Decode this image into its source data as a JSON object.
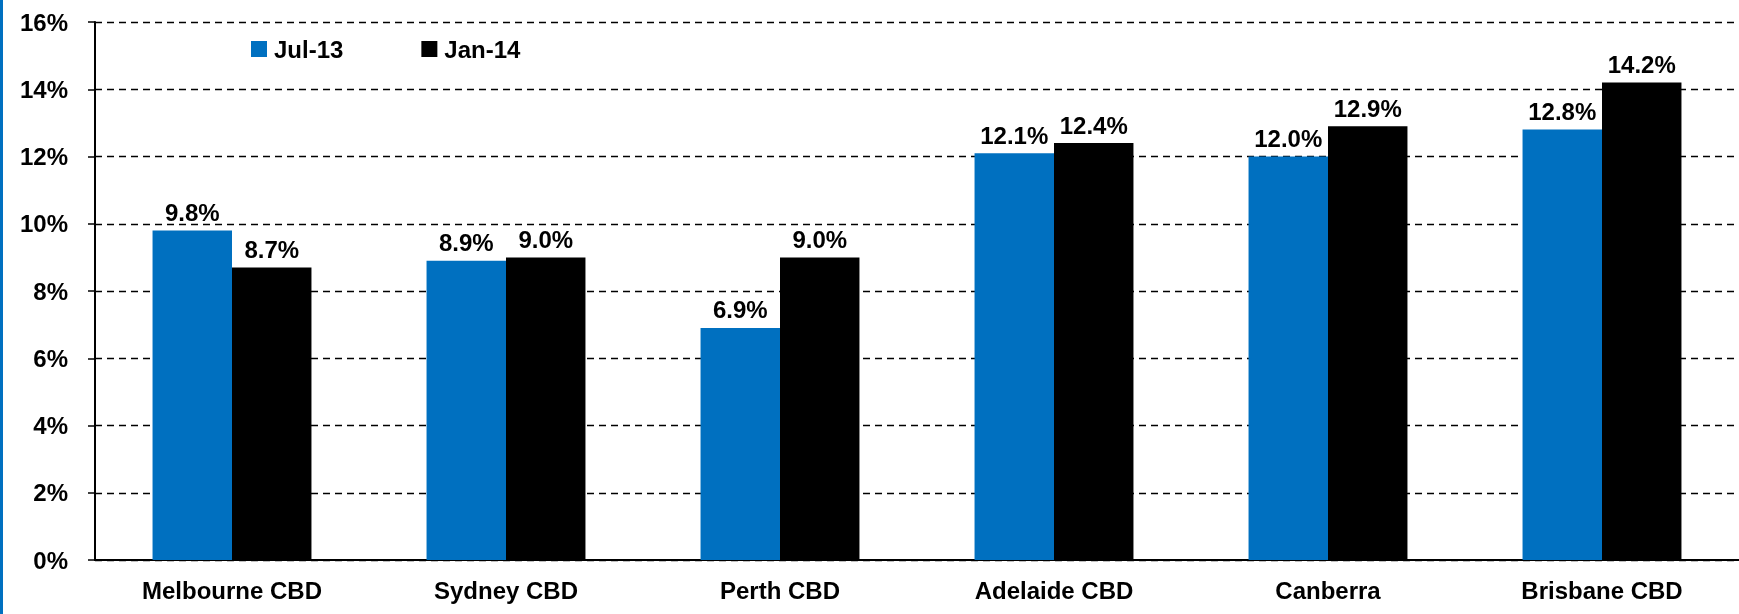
{
  "chart_data": {
    "type": "bar",
    "categories": [
      "Melbourne CBD",
      "Sydney CBD",
      "Perth CBD",
      "Adelaide CBD",
      "Canberra",
      "Brisbane CBD"
    ],
    "series": [
      {
        "name": "Jul-13",
        "color": "#0070c0",
        "values": [
          9.8,
          8.9,
          6.9,
          12.1,
          12.0,
          12.8
        ],
        "value_labels": [
          "9.8%",
          "8.9%",
          "6.9%",
          "12.1%",
          "12.0%",
          "12.8%"
        ]
      },
      {
        "name": "Jan-14",
        "color": "#000000",
        "values": [
          8.7,
          9.0,
          9.0,
          12.4,
          12.9,
          14.2
        ],
        "value_labels": [
          "8.7%",
          "9.0%",
          "9.0%",
          "12.4%",
          "12.9%",
          "14.2%"
        ]
      }
    ],
    "ylim": [
      0,
      16
    ],
    "yticks": [
      {
        "value": 0,
        "label": "0%"
      },
      {
        "value": 2,
        "label": "2%"
      },
      {
        "value": 4,
        "label": "4%"
      },
      {
        "value": 6,
        "label": "6%"
      },
      {
        "value": 8,
        "label": "8%"
      },
      {
        "value": 10,
        "label": "10%"
      },
      {
        "value": 12,
        "label": "12%"
      },
      {
        "value": 14,
        "label": "14%"
      },
      {
        "value": 16,
        "label": "16%"
      }
    ],
    "grid": "y",
    "legend": "top left"
  }
}
